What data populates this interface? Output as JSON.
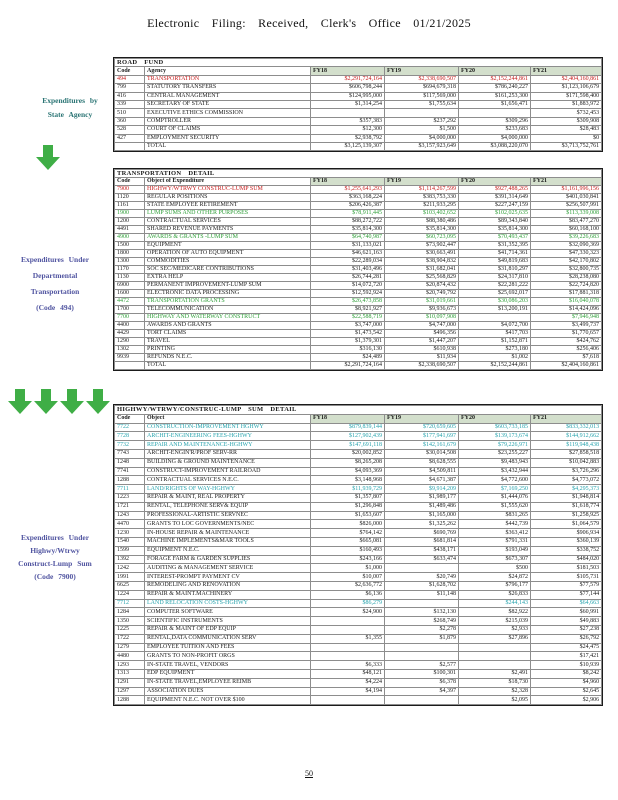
{
  "header": {
    "title": "Electronic Filing: Received, Clerk's Office 01/21/2025"
  },
  "annotations": {
    "agency": {
      "lines": [
        "Expenditures by",
        "State Agency"
      ]
    },
    "dept": {
      "lines": [
        "Expenditures Under",
        "Departmental",
        "Transportation",
        "(Code 494)"
      ]
    },
    "lump": {
      "lines": [
        "Expenditures Under",
        "Highwy/Wtrwy",
        "Construct-Lump Sum",
        "(Code 7900)"
      ]
    }
  },
  "footer": {
    "page_number": "50"
  },
  "colors": {
    "red": "#c41a1a",
    "green": "#2e9e38",
    "teal": "#27a3ad",
    "arrow_green": "#3fae46",
    "fy_header_bg": "#d3dfcc"
  },
  "tables": [
    {
      "title": "ROAD FUND",
      "columns": [
        "Code",
        "Agency",
        "FY18",
        "FY19",
        "FY20",
        "FY21"
      ],
      "code_color": true,
      "rows": [
        [
          "494",
          "TRANSPORTATION",
          "$2,291,724,164",
          "$2,338,690,507",
          "$2,152,244,861",
          "$2,404,160,861",
          "red"
        ],
        [
          "799",
          "STATUTORY TRANSFERS",
          "$606,798,244",
          "$694,679,318",
          "$786,240,227",
          "$1,123,106,679"
        ],
        [
          "416",
          "CENTRAL MANAGEMENT",
          "$124,995,000",
          "$117,569,000",
          "$161,253,300",
          "$171,598,400"
        ],
        [
          "339",
          "SECRETARY OF STATE",
          "$1,314,254",
          "$1,755,634",
          "$1,656,471",
          "$1,883,972"
        ],
        [
          "510",
          "EXECUTIVE ETHICS COMMISSION",
          "",
          "",
          "",
          "$732,453"
        ],
        [
          "360",
          "COMPTROLLER",
          "$357,383",
          "$237,292",
          "$309,296",
          "$309,908"
        ],
        [
          "528",
          "COURT OF CLAIMS",
          "$12,300",
          "$1,500",
          "$233,683",
          "$28,483"
        ],
        [
          "427",
          "EMPLOYMENT SECURITY",
          "$2,938,792",
          "$4,000,000",
          "$4,000,000",
          "$0"
        ],
        [
          "",
          "TOTAL",
          "$3,125,139,307",
          "$3,157,923,649",
          "$3,088,220,070",
          "$3,713,752,761"
        ]
      ]
    },
    {
      "title": "TRANSPORTATION DETAIL",
      "columns": [
        "Code",
        "Object of Expenditure",
        "FY18",
        "FY19",
        "FY20",
        "FY21"
      ],
      "rows": [
        [
          "7900",
          "HIGHWY/WTRWY CONSTRUC-LUMP SUM",
          "$1,255,641,293",
          "$1,114,267,599",
          "$927,488,265",
          "$1,161,996,156",
          "red"
        ],
        [
          "1120",
          "REGULAR POSITIONS",
          "$363,168,224",
          "$383,753,330",
          "$391,314,649",
          "$401,030,841"
        ],
        [
          "1161",
          "STATE EMPLOYEE RETIREMENT",
          "$206,426,387",
          "$211,933,295",
          "$227,247,159",
          "$256,507,991"
        ],
        [
          "1900",
          "LUMP SUMS AND OTHER PURPOSES",
          "$78,911,445",
          "$103,402,652",
          "$102,025,635",
          "$113,339,008",
          "green"
        ],
        [
          "1200",
          "CONTRACTUAL SERVICES",
          "$88,272,722",
          "$88,380,486",
          "$89,343,840",
          "$83,477,270"
        ],
        [
          "4491",
          "SHARED REVENUE PAYMENTS",
          "$35,814,300",
          "$35,814,300",
          "$35,814,300",
          "$60,168,100"
        ],
        [
          "4900",
          "AWARDS & GRANTS -LUMP SUM",
          "$64,740,987",
          "$60,723,095",
          "$70,493,437",
          "$39,226,683",
          "green"
        ],
        [
          "1500",
          "EQUIPMENT",
          "$31,133,021",
          "$73,902,447",
          "$31,352,395",
          "$32,090,369"
        ],
        [
          "1800",
          "OPERATION OF AUTO EQUIPMENT",
          "$46,621,163",
          "$30,663,491",
          "$41,714,361",
          "$47,330,323"
        ],
        [
          "1300",
          "COMMODITIES",
          "$22,289,034",
          "$38,904,832",
          "$49,819,683",
          "$42,170,802"
        ],
        [
          "1170",
          "SOC SEC/MEDICARE CONTRIBUTIONS",
          "$31,403,496",
          "$31,682,041",
          "$31,810,297",
          "$32,800,735"
        ],
        [
          "1130",
          "EXTRA HELP",
          "$26,744,281",
          "$25,568,829",
          "$24,317,810",
          "$28,238,080"
        ],
        [
          "6900",
          "PERMANENT IMPROVEMENT-LUMP SUM",
          "$14,072,720",
          "$20,874,432",
          "$22,281,222",
          "$22,724,820"
        ],
        [
          "1600",
          "ELECTRONIC DATA PROCESSING",
          "$12,592,924",
          "$20,749,792",
          "$25,692,017",
          "$17,881,318"
        ],
        [
          "4472",
          "TRANSPORTATION GRANTS",
          "$26,473,858",
          "$31,019,661",
          "$30,086,203",
          "$16,040,078",
          "green"
        ],
        [
          "1700",
          "TELECOMMUNICATION",
          "$8,921,927",
          "$9,936,673",
          "$13,200,191",
          "$14,424,096"
        ],
        [
          "7700",
          "HIGHWAY AND WATERWAY CONSTRUCT",
          "$22,588,719",
          "$10,097,908",
          "",
          "$7,946,948",
          "green"
        ],
        [
          "4400",
          "AWARDS AND GRANTS",
          "$3,747,000",
          "$4,747,000",
          "$4,072,700",
          "$3,499,737"
        ],
        [
          "4429",
          "TORT CLAIMS",
          "$1,473,542",
          "$496,356",
          "$417,703",
          "$1,770,657"
        ],
        [
          "1290",
          "TRAVEL",
          "$1,379,301",
          "$1,447,207",
          "$1,152,871",
          "$424,762"
        ],
        [
          "1302",
          "PRINTING",
          "$316,130",
          "$610,938",
          "$273,180",
          "$256,406"
        ],
        [
          "9939",
          "REFUNDS N.E.C.",
          "$24,489",
          "$11,934",
          "$1,002",
          "$7,618"
        ],
        [
          "",
          "TOTAL",
          "$2,291,724,164",
          "$2,338,690,507",
          "$2,152,244,861",
          "$2,404,160,861"
        ]
      ]
    },
    {
      "title": "HIGHWY/WTRWY/CONSTRUC-LUMP SUM DETAIL",
      "columns": [
        "Code",
        "Object",
        "FY18",
        "FY19",
        "FY20",
        "FY21"
      ],
      "rows": [
        [
          "7722",
          "CONSTRUCTION-IMPROVEMENT HGHWY",
          "$879,839,144",
          "$720,659,605",
          "$603,733,185",
          "$833,332,013",
          "teal"
        ],
        [
          "7728",
          "ARCHIT-ENGINEERING FEES-HGHWY",
          "$127,902,439",
          "$177,941,697",
          "$139,173,674",
          "$144,912,662",
          "teal"
        ],
        [
          "7732",
          "REPAIR AND MAINTENANCE-HGHWY",
          "$147,691,118",
          "$142,161,679",
          "$79,226,971",
          "$119,948,438",
          "teal"
        ],
        [
          "7743",
          "ARCHIT-ENGIN'R/PROF SERV-RR",
          "$20,002,852",
          "$30,014,508",
          "$23,255,227",
          "$27,858,518"
        ],
        [
          "1248",
          "BUILDING & GROUND MAINTENANCE",
          "$8,265,208",
          "$8,628,555",
          "$9,483,943",
          "$10,042,883"
        ],
        [
          "7741",
          "CONSTRUCT-IMPROVEMENT RAILROAD",
          "$4,093,369",
          "$4,509,811",
          "$3,432,944",
          "$3,726,296"
        ],
        [
          "1288",
          "CONTRACTUAL SERVICES N.E.C.",
          "$3,148,968",
          "$4,671,387",
          "$4,772,600",
          "$4,773,072"
        ],
        [
          "7711",
          "LAND/RIGHTS OF WAY-HGHWY",
          "$11,939,729",
          "$9,914,209",
          "$7,169,250",
          "$4,295,373",
          "teal"
        ],
        [
          "1223",
          "REPAIR & MAINT, REAL PROPERTY",
          "$1,357,807",
          "$1,989,177",
          "$1,444,076",
          "$1,948,814"
        ],
        [
          "1721",
          "RENTAL, TELEPHONE SERV& EQUIP",
          "$1,296,848",
          "$1,489,486",
          "$1,555,620",
          "$1,618,774"
        ],
        [
          "1243",
          "PROFESSIONAL-ARTISTIC SERVNEC",
          "$1,653,607",
          "$1,165,000",
          "$831,265",
          "$1,258,925"
        ],
        [
          "4470",
          "GRANTS TO LOC GOVERNMENTS/NEC",
          "$826,000",
          "$1,325,262",
          "$442,739",
          "$1,064,579"
        ],
        [
          "1230",
          "IN-HOUSE REPAIR & MAINTENANCE",
          "$764,142",
          "$690,769",
          "$363,412",
          "$906,934"
        ],
        [
          "1540",
          "MACHINE IMPLEMENTS&MAR TOOLS",
          "$665,081",
          "$681,814",
          "$791,331",
          "$360,139"
        ],
        [
          "1599",
          "EQUIPMENT N.E.C.",
          "$160,493",
          "$438,171",
          "$193,049",
          "$338,752"
        ],
        [
          "1392",
          "FORAGE FARM & GARDEN SUPPLIES",
          "$243,166",
          "$633,474",
          "$673,307",
          "$484,020"
        ],
        [
          "1242",
          "AUDITING & MANAGEMENT SERVICE",
          "$1,000",
          "",
          "$500",
          "$181,503"
        ],
        [
          "1991",
          "INTEREST-PROMPT PAYMENT CV",
          "$10,007",
          "$20,749",
          "$24,872",
          "$105,731"
        ],
        [
          "6625",
          "REMODELING AND RENOVATION",
          "$2,636,772",
          "$1,628,702",
          "$796,177",
          "$77,579"
        ],
        [
          "1224",
          "REPAIR & MAINT.MACHINERY",
          "$6,136",
          "$11,148",
          "$26,833",
          "$77,144"
        ],
        [
          "7712",
          "LAND RELOCATION COSTS-HGHWY",
          "$86,279",
          "",
          "$244,143",
          "$64,663",
          "teal"
        ],
        [
          "1284",
          "COMPUTER SOFTWARE",
          "$24,900",
          "$132,130",
          "$82,922",
          "$60,991"
        ],
        [
          "1350",
          "SCIENTIFIC INSTRUMENTS",
          "",
          "$268,749",
          "$215,039",
          "$49,883"
        ],
        [
          "1225",
          "REPAIR & MAINT OF EDP EQUIP",
          "",
          "$2,278",
          "$2,933",
          "$27,238"
        ],
        [
          "1722",
          "RENTAL,DATA COMMUNICATION SERV",
          "$1,355",
          "$1,879",
          "$27,896",
          "$26,792"
        ],
        [
          "1279",
          "EMPLOYEE TUITION AND FEES",
          "",
          "",
          "",
          "$24,475"
        ],
        [
          "4480",
          "GRANTS TO NON-PROFIT ORGS",
          "",
          "",
          "",
          "$17,421"
        ],
        [
          "1293",
          "IN-STATE TRAVEL, VENDORS",
          "$6,333",
          "$2,577",
          "",
          "$10,939"
        ],
        [
          "1313",
          "EDP EQUIPMENT",
          "$48,121",
          "$100,301",
          "$2,491",
          "$8,242"
        ],
        [
          "1291",
          "IN-STATE TRAVEL,EMPLOYEE REIMB",
          "$4,224",
          "$6,378",
          "$18,730",
          "$4,960"
        ],
        [
          "1297",
          "ASSOCIATION DUES",
          "$4,194",
          "$4,397",
          "$2,328",
          "$2,645"
        ],
        [
          "1288",
          "EQUIPMENT N.E.C. NOT OVER $100",
          "",
          "",
          "$2,095",
          "$2,906"
        ]
      ]
    }
  ]
}
